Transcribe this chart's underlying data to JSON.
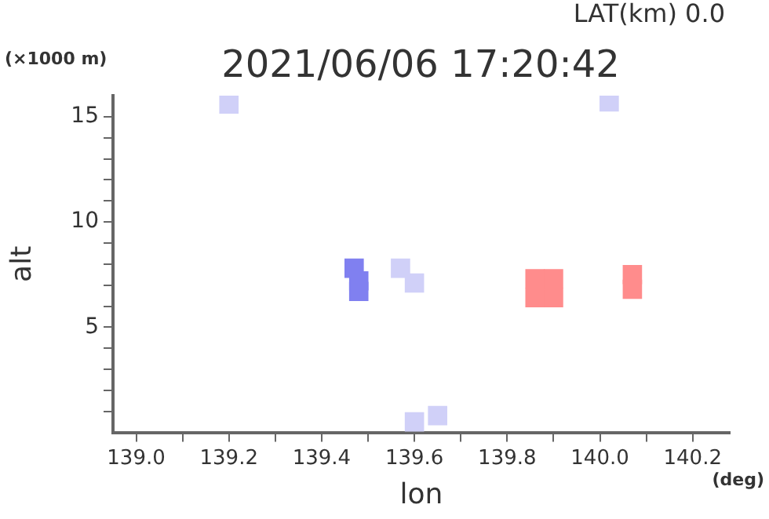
{
  "chart_data": {
    "type": "scatter",
    "title": "2021/06/06 17:20:42",
    "xlabel": "lon",
    "ylabel": "alt",
    "annotations": [
      "LAT(km) 0.0",
      "(×1000 m)",
      "(deg)"
    ],
    "series": [
      {
        "color": "#8080f0",
        "x": [
          139.47,
          139.48,
          139.48
        ],
        "values": [
          7.8,
          7.2,
          6.7
        ]
      },
      {
        "color": "#d0d0f8",
        "x": [
          139.57,
          139.6,
          139.2,
          140.02,
          139.6,
          139.65
        ],
        "values": [
          7.8,
          7.1,
          15.6,
          15.7,
          0.5,
          0.8
        ]
      },
      {
        "color": "#ff8c8c",
        "x": [
          139.86,
          139.9,
          139.86,
          139.9,
          140.07,
          140.07
        ],
        "values": [
          7.3,
          7.3,
          6.4,
          6.4,
          7.5,
          6.8
        ]
      }
    ],
    "xlim": [
      138.95,
      140.28
    ],
    "xticks": [
      {
        "value": 139,
        "label": "139.0"
      },
      {
        "value": 139.1,
        "label": null
      },
      {
        "value": 139.2,
        "label": "139.2"
      },
      {
        "value": 139.3,
        "label": null
      },
      {
        "value": 139.4,
        "label": "139.4"
      },
      {
        "value": 139.5,
        "label": null
      },
      {
        "value": 139.6,
        "label": "139.6"
      },
      {
        "value": 139.7,
        "label": null
      },
      {
        "value": 139.8,
        "label": "139.8"
      },
      {
        "value": 139.9,
        "label": null
      },
      {
        "value": 140,
        "label": "140.0"
      },
      {
        "value": 140.1,
        "label": null
      },
      {
        "value": 140.2,
        "label": "140.2"
      }
    ],
    "ylim": [
      0,
      16
    ],
    "yticks": [
      {
        "value": 1,
        "label": null
      },
      {
        "value": 2,
        "label": null
      },
      {
        "value": 3,
        "label": null
      },
      {
        "value": 4,
        "label": null
      },
      5,
      {
        "value": 6,
        "label": null
      },
      {
        "value": 7,
        "label": null
      },
      {
        "value": 8,
        "label": null
      },
      {
        "value": 9,
        "label": null
      },
      10,
      {
        "value": 11,
        "label": null
      },
      {
        "value": 12,
        "label": null
      },
      {
        "value": 13,
        "label": null
      },
      {
        "value": 14,
        "label": null
      },
      15
    ],
    "marker": "square",
    "grid": false,
    "legend": false
  }
}
